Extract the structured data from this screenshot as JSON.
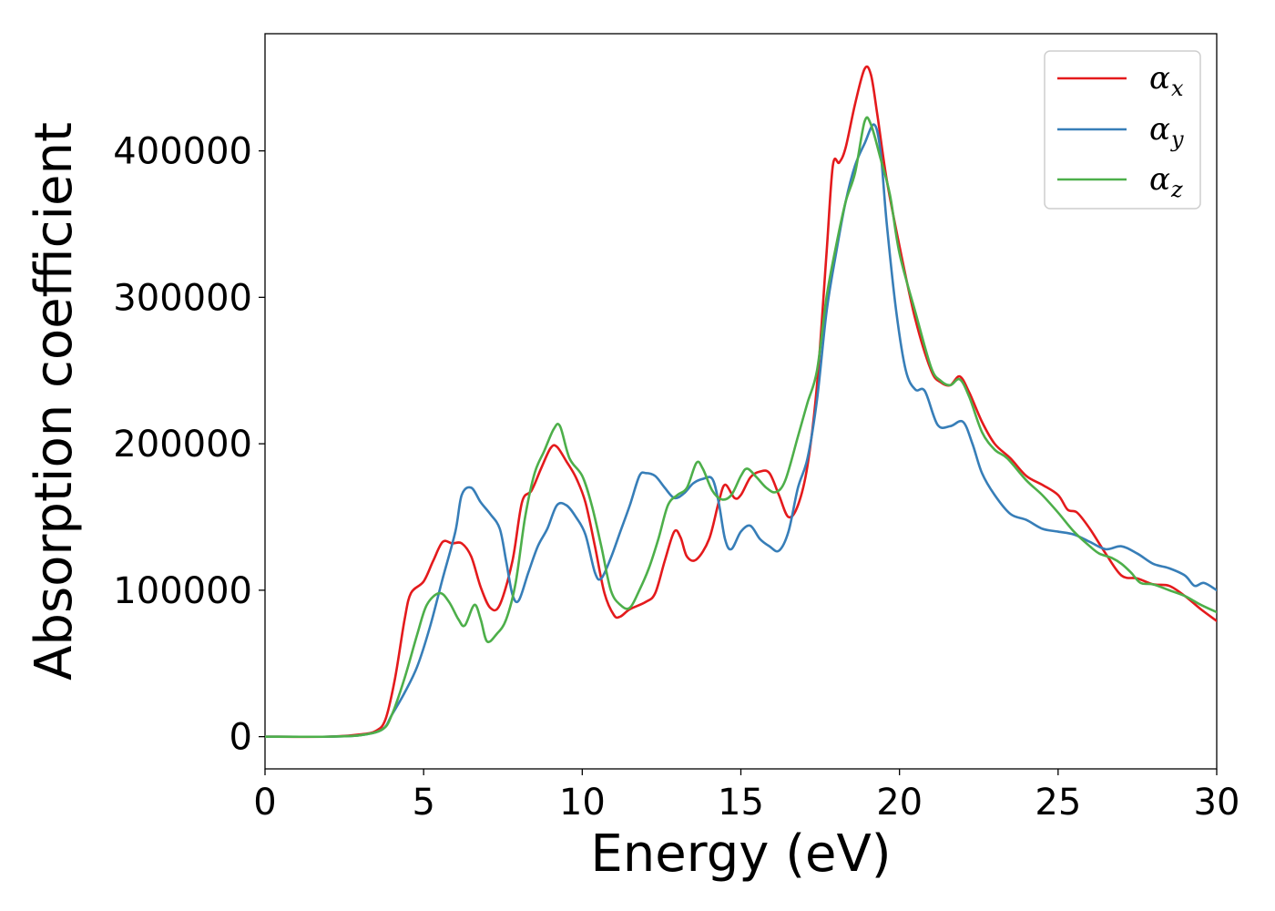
{
  "chart_data": {
    "type": "line",
    "title": "",
    "xlabel": "Energy (eV)",
    "ylabel": "Absorption coefficient",
    "xlim": [
      0,
      30
    ],
    "ylim": [
      -22000,
      480000
    ],
    "x_ticks": [
      0,
      5,
      10,
      15,
      20,
      25,
      30
    ],
    "x_tick_labels": [
      "0",
      "5",
      "10",
      "15",
      "20",
      "25",
      "30"
    ],
    "y_ticks": [
      0,
      100000,
      200000,
      300000,
      400000
    ],
    "y_tick_labels": [
      "0",
      "100000",
      "200000",
      "300000",
      "400000"
    ],
    "grid": false,
    "legend_position": "top-right",
    "series": [
      {
        "name": "α",
        "name_subscript": "x",
        "color": "#e41a1c",
        "points": [
          [
            0,
            0
          ],
          [
            2,
            0
          ],
          [
            3,
            1500
          ],
          [
            3.5,
            4000
          ],
          [
            3.8,
            12000
          ],
          [
            4.1,
            40000
          ],
          [
            4.4,
            80000
          ],
          [
            4.6,
            98000
          ],
          [
            5,
            106000
          ],
          [
            5.3,
            120000
          ],
          [
            5.6,
            133000
          ],
          [
            5.9,
            132000
          ],
          [
            6.2,
            132000
          ],
          [
            6.5,
            123000
          ],
          [
            6.8,
            102000
          ],
          [
            7.1,
            88000
          ],
          [
            7.4,
            90000
          ],
          [
            7.8,
            120000
          ],
          [
            8.1,
            160000
          ],
          [
            8.4,
            168000
          ],
          [
            8.7,
            183000
          ],
          [
            9,
            197000
          ],
          [
            9.2,
            198000
          ],
          [
            9.5,
            188000
          ],
          [
            9.8,
            177000
          ],
          [
            10.1,
            160000
          ],
          [
            10.4,
            130000
          ],
          [
            10.7,
            98000
          ],
          [
            11,
            83000
          ],
          [
            11.2,
            82000
          ],
          [
            11.5,
            87000
          ],
          [
            12,
            92000
          ],
          [
            12.3,
            98000
          ],
          [
            12.6,
            120000
          ],
          [
            12.9,
            140000
          ],
          [
            13.1,
            136000
          ],
          [
            13.3,
            123000
          ],
          [
            13.6,
            121000
          ],
          [
            14,
            135000
          ],
          [
            14.3,
            160000
          ],
          [
            14.5,
            172000
          ],
          [
            14.8,
            163000
          ],
          [
            15,
            165000
          ],
          [
            15.3,
            177000
          ],
          [
            15.6,
            181000
          ],
          [
            15.9,
            180000
          ],
          [
            16.2,
            165000
          ],
          [
            16.5,
            150000
          ],
          [
            16.8,
            158000
          ],
          [
            17.1,
            185000
          ],
          [
            17.4,
            240000
          ],
          [
            17.7,
            330000
          ],
          [
            17.9,
            390000
          ],
          [
            18.1,
            392000
          ],
          [
            18.3,
            402000
          ],
          [
            18.6,
            432000
          ],
          [
            18.9,
            456000
          ],
          [
            19.1,
            452000
          ],
          [
            19.3,
            425000
          ],
          [
            19.6,
            380000
          ],
          [
            20,
            335000
          ],
          [
            20.5,
            285000
          ],
          [
            21,
            250000
          ],
          [
            21.3,
            242000
          ],
          [
            21.6,
            240000
          ],
          [
            21.9,
            246000
          ],
          [
            22.2,
            235000
          ],
          [
            22.6,
            215000
          ],
          [
            23,
            200000
          ],
          [
            23.5,
            190000
          ],
          [
            24,
            178000
          ],
          [
            24.5,
            172000
          ],
          [
            25,
            165000
          ],
          [
            25.3,
            155000
          ],
          [
            25.6,
            153000
          ],
          [
            26,
            142000
          ],
          [
            26.5,
            125000
          ],
          [
            27,
            110000
          ],
          [
            27.5,
            108000
          ],
          [
            28,
            104000
          ],
          [
            28.5,
            103000
          ],
          [
            29,
            96000
          ],
          [
            29.5,
            87000
          ],
          [
            30,
            79000
          ]
        ]
      },
      {
        "name": "α",
        "name_subscript": "y",
        "color": "#377eb8",
        "points": [
          [
            0,
            0
          ],
          [
            2,
            0
          ],
          [
            3,
            1000
          ],
          [
            3.7,
            5000
          ],
          [
            4,
            15000
          ],
          [
            4.4,
            30000
          ],
          [
            4.8,
            48000
          ],
          [
            5.2,
            75000
          ],
          [
            5.6,
            108000
          ],
          [
            6,
            140000
          ],
          [
            6.2,
            165000
          ],
          [
            6.5,
            170000
          ],
          [
            6.8,
            160000
          ],
          [
            7.1,
            152000
          ],
          [
            7.4,
            142000
          ],
          [
            7.6,
            120000
          ],
          [
            7.8,
            97000
          ],
          [
            8,
            93000
          ],
          [
            8.3,
            112000
          ],
          [
            8.6,
            130000
          ],
          [
            8.9,
            142000
          ],
          [
            9.2,
            158000
          ],
          [
            9.5,
            158000
          ],
          [
            9.8,
            150000
          ],
          [
            10.1,
            138000
          ],
          [
            10.4,
            112000
          ],
          [
            10.6,
            108000
          ],
          [
            10.9,
            122000
          ],
          [
            11.2,
            140000
          ],
          [
            11.5,
            158000
          ],
          [
            11.8,
            178000
          ],
          [
            12,
            180000
          ],
          [
            12.3,
            178000
          ],
          [
            12.6,
            170000
          ],
          [
            12.9,
            163000
          ],
          [
            13.2,
            166000
          ],
          [
            13.5,
            173000
          ],
          [
            13.8,
            176000
          ],
          [
            14.1,
            176000
          ],
          [
            14.3,
            160000
          ],
          [
            14.5,
            135000
          ],
          [
            14.7,
            128000
          ],
          [
            15,
            140000
          ],
          [
            15.3,
            144000
          ],
          [
            15.6,
            135000
          ],
          [
            15.9,
            130000
          ],
          [
            16.2,
            127000
          ],
          [
            16.5,
            140000
          ],
          [
            16.8,
            170000
          ],
          [
            17.1,
            190000
          ],
          [
            17.4,
            230000
          ],
          [
            17.7,
            290000
          ],
          [
            18,
            330000
          ],
          [
            18.3,
            365000
          ],
          [
            18.6,
            390000
          ],
          [
            18.9,
            405000
          ],
          [
            19.2,
            418000
          ],
          [
            19.4,
            400000
          ],
          [
            19.6,
            350000
          ],
          [
            19.9,
            290000
          ],
          [
            20.2,
            250000
          ],
          [
            20.5,
            237000
          ],
          [
            20.8,
            236000
          ],
          [
            21.2,
            213000
          ],
          [
            21.6,
            212000
          ],
          [
            22,
            215000
          ],
          [
            22.3,
            200000
          ],
          [
            22.6,
            180000
          ],
          [
            23,
            165000
          ],
          [
            23.5,
            152000
          ],
          [
            24,
            148000
          ],
          [
            24.5,
            142000
          ],
          [
            25,
            140000
          ],
          [
            25.5,
            138000
          ],
          [
            26,
            133000
          ],
          [
            26.5,
            128000
          ],
          [
            27,
            130000
          ],
          [
            27.5,
            125000
          ],
          [
            28,
            118000
          ],
          [
            28.5,
            115000
          ],
          [
            29,
            110000
          ],
          [
            29.3,
            103000
          ],
          [
            29.6,
            105000
          ],
          [
            30,
            100000
          ]
        ]
      },
      {
        "name": "α",
        "name_subscript": "z",
        "color": "#4daf4a",
        "points": [
          [
            0,
            0
          ],
          [
            2,
            0
          ],
          [
            3,
            1000
          ],
          [
            3.7,
            5000
          ],
          [
            4,
            15000
          ],
          [
            4.4,
            40000
          ],
          [
            4.8,
            70000
          ],
          [
            5.1,
            90000
          ],
          [
            5.5,
            98000
          ],
          [
            5.8,
            92000
          ],
          [
            6.1,
            80000
          ],
          [
            6.3,
            76000
          ],
          [
            6.6,
            90000
          ],
          [
            6.8,
            80000
          ],
          [
            7,
            65000
          ],
          [
            7.3,
            70000
          ],
          [
            7.6,
            80000
          ],
          [
            7.9,
            105000
          ],
          [
            8.2,
            150000
          ],
          [
            8.5,
            180000
          ],
          [
            8.8,
            195000
          ],
          [
            9.1,
            210000
          ],
          [
            9.3,
            212000
          ],
          [
            9.6,
            190000
          ],
          [
            10,
            178000
          ],
          [
            10.3,
            158000
          ],
          [
            10.6,
            130000
          ],
          [
            10.9,
            100000
          ],
          [
            11.2,
            90000
          ],
          [
            11.5,
            88000
          ],
          [
            11.8,
            100000
          ],
          [
            12.1,
            115000
          ],
          [
            12.4,
            135000
          ],
          [
            12.7,
            158000
          ],
          [
            13,
            165000
          ],
          [
            13.3,
            170000
          ],
          [
            13.6,
            187000
          ],
          [
            13.8,
            183000
          ],
          [
            14.1,
            168000
          ],
          [
            14.4,
            162000
          ],
          [
            14.7,
            165000
          ],
          [
            15,
            178000
          ],
          [
            15.2,
            183000
          ],
          [
            15.5,
            177000
          ],
          [
            15.8,
            170000
          ],
          [
            16.1,
            167000
          ],
          [
            16.4,
            175000
          ],
          [
            16.8,
            205000
          ],
          [
            17.1,
            228000
          ],
          [
            17.4,
            250000
          ],
          [
            17.7,
            300000
          ],
          [
            18,
            335000
          ],
          [
            18.3,
            365000
          ],
          [
            18.6,
            385000
          ],
          [
            18.9,
            420000
          ],
          [
            19.1,
            418000
          ],
          [
            19.4,
            395000
          ],
          [
            19.7,
            370000
          ],
          [
            20,
            330000
          ],
          [
            20.5,
            290000
          ],
          [
            21,
            252000
          ],
          [
            21.3,
            243000
          ],
          [
            21.6,
            240000
          ],
          [
            21.9,
            244000
          ],
          [
            22.2,
            232000
          ],
          [
            22.6,
            208000
          ],
          [
            23,
            196000
          ],
          [
            23.4,
            190000
          ],
          [
            24,
            175000
          ],
          [
            24.5,
            165000
          ],
          [
            25,
            153000
          ],
          [
            25.5,
            140000
          ],
          [
            26,
            130000
          ],
          [
            26.3,
            125000
          ],
          [
            26.7,
            122000
          ],
          [
            27,
            118000
          ],
          [
            27.3,
            112000
          ],
          [
            27.6,
            105000
          ],
          [
            28,
            104000
          ],
          [
            28.5,
            100000
          ],
          [
            29,
            96000
          ],
          [
            29.5,
            90000
          ],
          [
            30,
            85000
          ]
        ]
      }
    ]
  }
}
